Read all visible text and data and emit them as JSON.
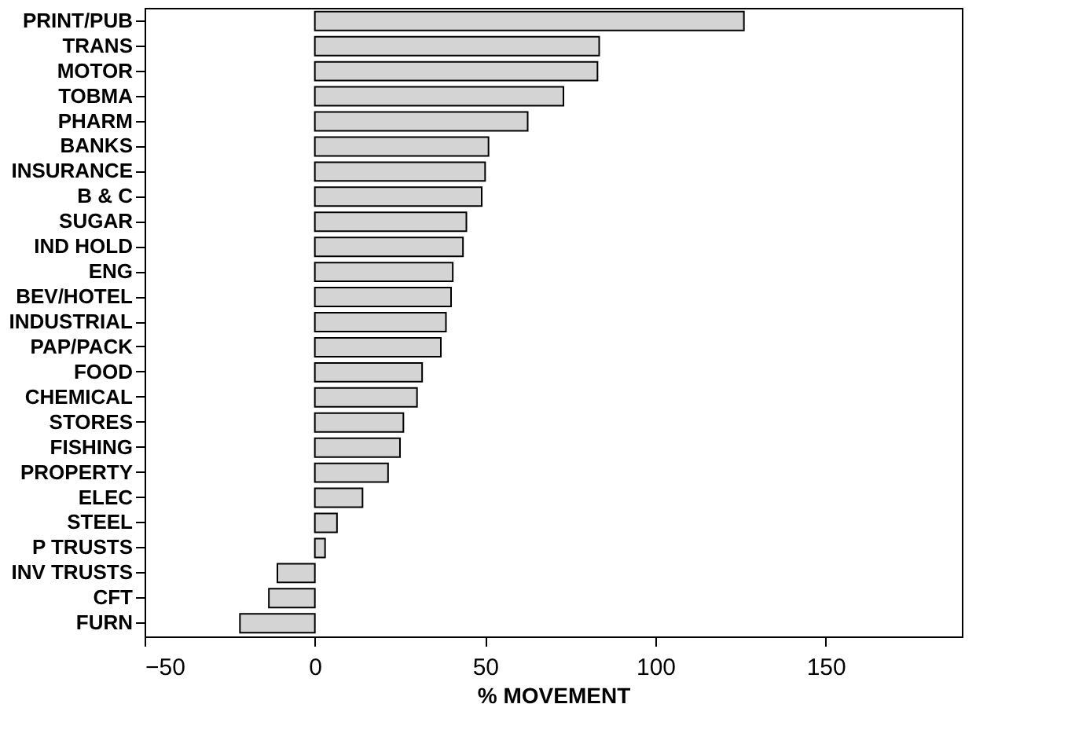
{
  "chart_data": {
    "type": "bar",
    "orientation": "horizontal",
    "xlabel": "% MOVEMENT",
    "categories": [
      "PRINT/PUB",
      "TRANS",
      "MOTOR",
      "TOBMA",
      "PHARM",
      "BANKS",
      "INSURANCE",
      "B & C",
      "SUGAR",
      "IND HOLD",
      "ENG",
      "BEV/HOTEL",
      "INDUSTRIAL",
      "PAP/PACK",
      "FOOD",
      "CHEMICAL",
      "STORES",
      "FISHING",
      "PROPERTY",
      "ELEC",
      "STEEL",
      "P TRUSTS",
      "INV TRUSTS",
      "CFT",
      "FURN"
    ],
    "values": [
      126,
      83.5,
      83,
      73,
      62.5,
      51,
      50,
      49,
      44.5,
      43.5,
      40.5,
      40,
      38.5,
      37,
      31.5,
      30,
      26,
      25,
      21.5,
      14,
      6.5,
      3,
      -11,
      -13.5,
      -22
    ],
    "color": "#d4d4d4",
    "xlim": [
      -50,
      190
    ],
    "xticks": [
      -50,
      0,
      50,
      100,
      150
    ],
    "grid": false
  }
}
